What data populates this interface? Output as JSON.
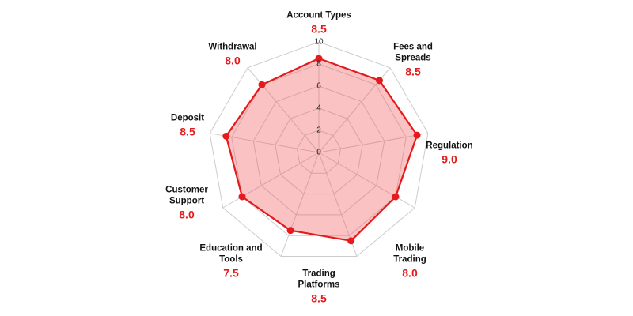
{
  "chart_data": {
    "type": "radar",
    "categories": [
      "Account Types",
      "Fees and Spreads",
      "Regulation",
      "Mobile Trading",
      "Trading Platforms",
      "Education and Tools",
      "Customer Support",
      "Deposit",
      "Withdrawal"
    ],
    "values": [
      8.5,
      8.5,
      9.0,
      8.0,
      8.5,
      7.5,
      8.0,
      8.5,
      8.0
    ],
    "value_labels": [
      "8.5",
      "8.5",
      "9.0",
      "8.0",
      "8.5",
      "7.5",
      "8.0",
      "8.5",
      "8.0"
    ],
    "color": "#e41a1c",
    "ylim": [
      0,
      10
    ],
    "yticks": [
      0,
      2,
      4,
      6,
      8,
      10
    ],
    "grid": true
  }
}
